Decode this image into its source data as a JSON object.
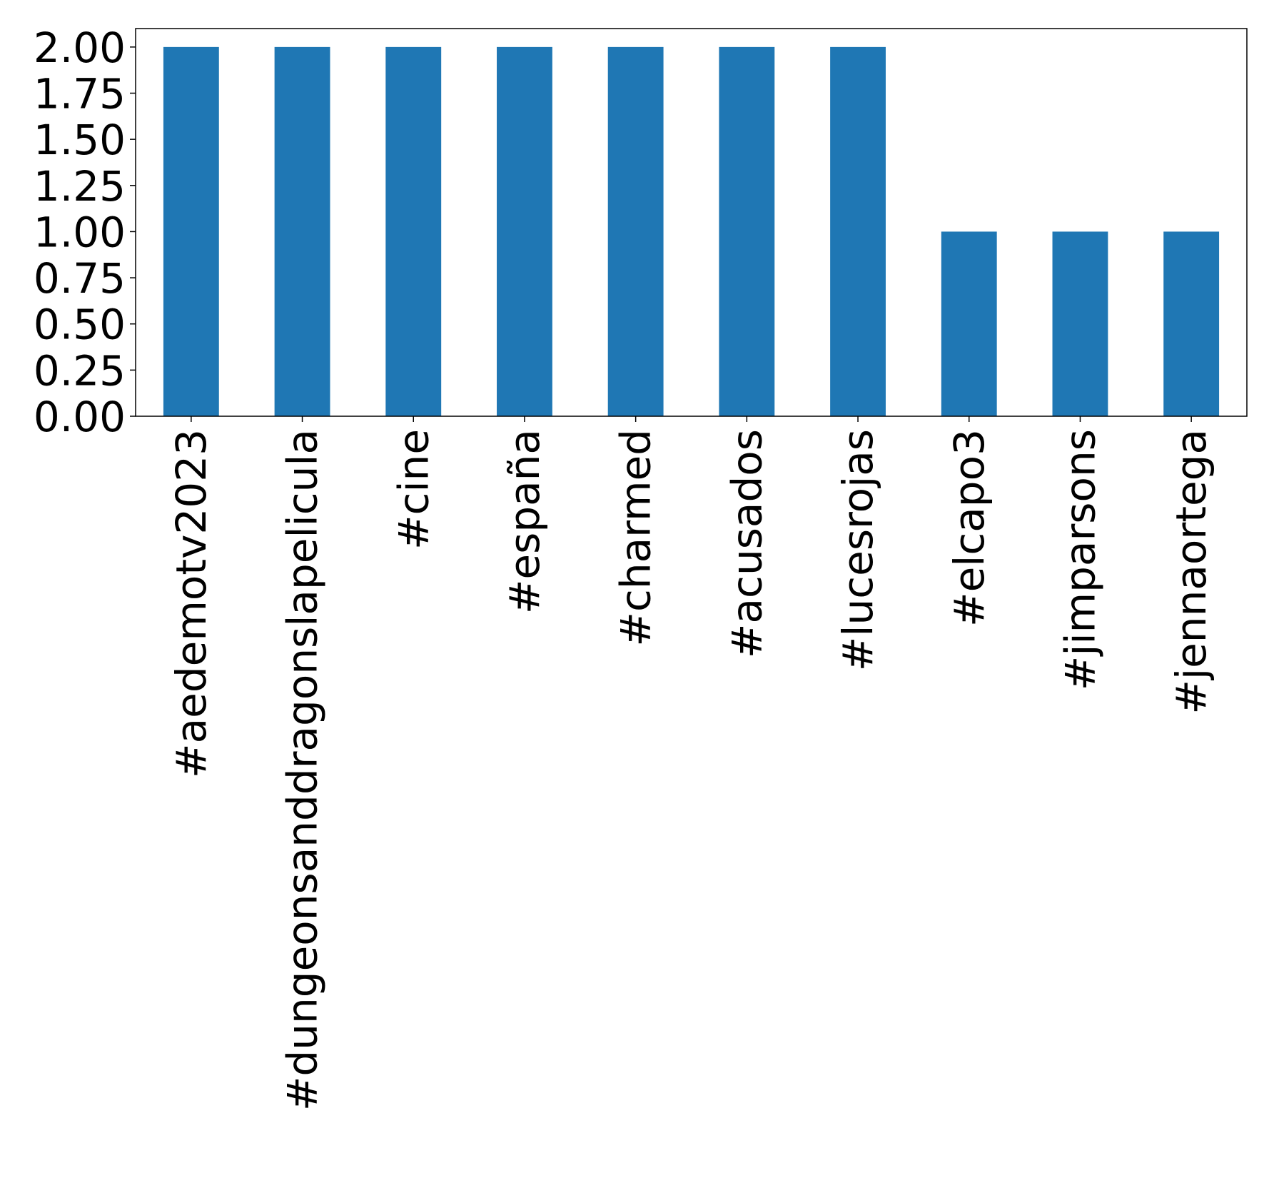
{
  "chart_data": {
    "type": "bar",
    "title": "",
    "xlabel": "",
    "ylabel": "",
    "categories": [
      "#aedemotv2023",
      "#dungeonsanddragonslapelicula",
      "#cine",
      "#españa",
      "#charmed",
      "#acusados",
      "#lucesrojas",
      "#elcapo3",
      "#jimparsons",
      "#jennaortega"
    ],
    "values": [
      2,
      2,
      2,
      2,
      2,
      2,
      2,
      1,
      1,
      1
    ],
    "ylim": [
      0,
      2.1
    ],
    "yticks": [
      "0.00",
      "0.25",
      "0.50",
      "0.75",
      "1.00",
      "1.25",
      "1.50",
      "1.75",
      "2.00"
    ],
    "grid": false,
    "legend": "none",
    "bar_color": "#1f77b4"
  }
}
